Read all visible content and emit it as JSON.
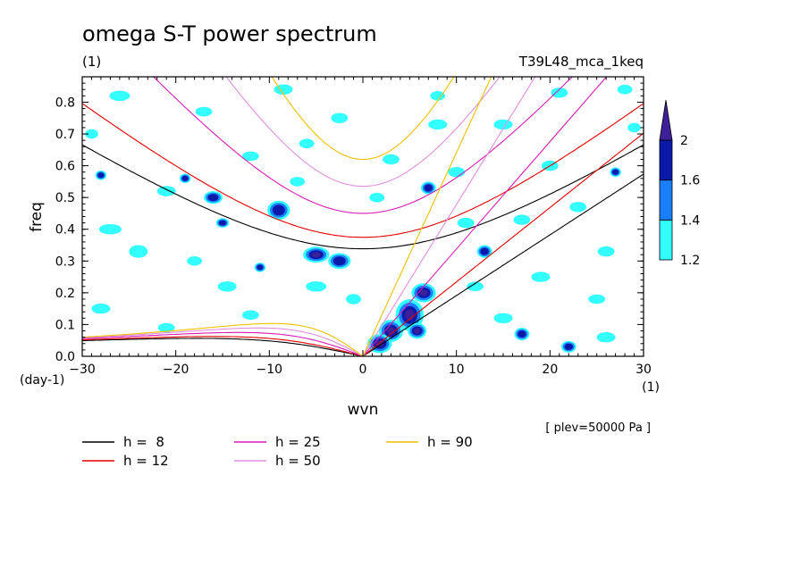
{
  "chart_data": {
    "type": "heatmap",
    "title": "omega S-T power spectrum",
    "subtitle_left": "(1)",
    "subtitle_right": "T39L48_mca_1keq",
    "xlabel": "wvn",
    "ylabel": "freq",
    "x_unit": "(1)",
    "y_unit": "(day-1)",
    "note": "[ plev=50000 Pa ]",
    "xlim": [
      -30,
      30
    ],
    "ylim": [
      0,
      0.88
    ],
    "xticks": [
      -30,
      -20,
      -10,
      0,
      10,
      20,
      30
    ],
    "yticks": [
      0.0,
      0.1,
      0.2,
      0.3,
      0.4,
      0.5,
      0.6,
      0.7,
      0.8
    ],
    "xtick_labels": [
      "−30",
      "−20",
      "−10",
      "0",
      "10",
      "20",
      "30"
    ],
    "ytick_labels": [
      "0.0",
      "0.1",
      "0.2",
      "0.3",
      "0.4",
      "0.5",
      "0.6",
      "0.7",
      "0.8"
    ],
    "colorbar": {
      "levels": [
        1.2,
        1.4,
        1.6,
        2
      ],
      "level_labels": [
        "1.2",
        "1.4",
        "1.6",
        "2"
      ],
      "colors": [
        "#33ffff",
        "#1a7fff",
        "#0b1aa8",
        "#3d1f99"
      ],
      "extend": "max"
    },
    "dispersion_curves": [
      {
        "label": "h =  8",
        "h": 8,
        "color": "#000000"
      },
      {
        "label": "h = 12",
        "h": 12,
        "color": "#e00000"
      },
      {
        "label": "h = 25",
        "h": 25,
        "color": "#d81ab5"
      },
      {
        "label": "h = 50",
        "h": 50,
        "color": "#e28ee0"
      },
      {
        "label": "h = 90",
        "h": 90,
        "color": "#f0c000"
      }
    ],
    "blobs": [
      {
        "x": 3,
        "y": 0.08,
        "rx": 1.3,
        "ry": 0.035,
        "level": 3
      },
      {
        "x": 5,
        "y": 0.13,
        "rx": 1.5,
        "ry": 0.05,
        "level": 3
      },
      {
        "x": 6.5,
        "y": 0.2,
        "rx": 1.3,
        "ry": 0.03,
        "level": 3
      },
      {
        "x": 1.8,
        "y": 0.04,
        "rx": 1.3,
        "ry": 0.03,
        "level": 3
      },
      {
        "x": 5.8,
        "y": 0.08,
        "rx": 1.0,
        "ry": 0.025,
        "level": 3
      },
      {
        "x": -5,
        "y": 0.32,
        "rx": 1.4,
        "ry": 0.025,
        "level": 3
      },
      {
        "x": -2.5,
        "y": 0.3,
        "rx": 1.2,
        "ry": 0.025,
        "level": 2
      },
      {
        "x": -9,
        "y": 0.46,
        "rx": 1.2,
        "ry": 0.03,
        "level": 2
      },
      {
        "x": -16,
        "y": 0.5,
        "rx": 1.0,
        "ry": 0.02,
        "level": 2
      },
      {
        "x": 7,
        "y": 0.53,
        "rx": 0.8,
        "ry": 0.02,
        "level": 2
      },
      {
        "x": 13,
        "y": 0.33,
        "rx": 0.8,
        "ry": 0.02,
        "level": 2
      },
      {
        "x": 17,
        "y": 0.07,
        "rx": 0.8,
        "ry": 0.02,
        "level": 2
      },
      {
        "x": 22,
        "y": 0.03,
        "rx": 0.8,
        "ry": 0.018,
        "level": 2
      },
      {
        "x": -28,
        "y": 0.57,
        "rx": 0.6,
        "ry": 0.015,
        "level": 2
      },
      {
        "x": -19,
        "y": 0.56,
        "rx": 0.6,
        "ry": 0.015,
        "level": 2
      },
      {
        "x": -15,
        "y": 0.42,
        "rx": 0.7,
        "ry": 0.015,
        "level": 2
      },
      {
        "x": 27,
        "y": 0.58,
        "rx": 0.6,
        "ry": 0.015,
        "level": 2
      },
      {
        "x": -11,
        "y": 0.28,
        "rx": 0.6,
        "ry": 0.015,
        "level": 2
      },
      {
        "x": -5,
        "y": 0.22,
        "rx": 1.1,
        "ry": 0.016,
        "level": 0
      },
      {
        "x": -14.5,
        "y": 0.22,
        "rx": 1.0,
        "ry": 0.016,
        "level": 0
      },
      {
        "x": -24,
        "y": 0.33,
        "rx": 1.0,
        "ry": 0.02,
        "level": 0
      },
      {
        "x": -27,
        "y": 0.4,
        "rx": 1.2,
        "ry": 0.016,
        "level": 0
      },
      {
        "x": -21,
        "y": 0.52,
        "rx": 1.0,
        "ry": 0.016,
        "level": 0
      },
      {
        "x": -12,
        "y": 0.63,
        "rx": 0.9,
        "ry": 0.015,
        "level": 0
      },
      {
        "x": -6,
        "y": 0.67,
        "rx": 0.8,
        "ry": 0.015,
        "level": 0
      },
      {
        "x": -2.5,
        "y": 0.75,
        "rx": 0.9,
        "ry": 0.016,
        "level": 0
      },
      {
        "x": -8.5,
        "y": 0.84,
        "rx": 1.0,
        "ry": 0.016,
        "level": 0
      },
      {
        "x": -26,
        "y": 0.82,
        "rx": 1.1,
        "ry": 0.016,
        "level": 0
      },
      {
        "x": -17,
        "y": 0.77,
        "rx": 0.9,
        "ry": 0.015,
        "level": 0
      },
      {
        "x": 8,
        "y": 0.73,
        "rx": 1.0,
        "ry": 0.016,
        "level": 0
      },
      {
        "x": 15,
        "y": 0.73,
        "rx": 1.0,
        "ry": 0.016,
        "level": 0
      },
      {
        "x": 21,
        "y": 0.83,
        "rx": 0.9,
        "ry": 0.016,
        "level": 0
      },
      {
        "x": 28,
        "y": 0.84,
        "rx": 0.8,
        "ry": 0.015,
        "level": 0
      },
      {
        "x": 26,
        "y": 0.33,
        "rx": 0.9,
        "ry": 0.016,
        "level": 0
      },
      {
        "x": 19,
        "y": 0.25,
        "rx": 1.0,
        "ry": 0.016,
        "level": 0
      },
      {
        "x": 25,
        "y": 0.18,
        "rx": 0.9,
        "ry": 0.015,
        "level": 0
      },
      {
        "x": 15,
        "y": 0.12,
        "rx": 1.0,
        "ry": 0.016,
        "level": 0
      },
      {
        "x": 26,
        "y": 0.06,
        "rx": 1.0,
        "ry": 0.016,
        "level": 0
      },
      {
        "x": 11,
        "y": 0.42,
        "rx": 0.9,
        "ry": 0.016,
        "level": 0
      },
      {
        "x": 17,
        "y": 0.43,
        "rx": 0.9,
        "ry": 0.016,
        "level": 0
      },
      {
        "x": 23,
        "y": 0.47,
        "rx": 0.9,
        "ry": 0.016,
        "level": 0
      },
      {
        "x": 10,
        "y": 0.58,
        "rx": 0.9,
        "ry": 0.016,
        "level": 0
      },
      {
        "x": 20,
        "y": 0.6,
        "rx": 0.9,
        "ry": 0.016,
        "level": 0
      },
      {
        "x": 3,
        "y": 0.62,
        "rx": 0.9,
        "ry": 0.016,
        "level": 0
      },
      {
        "x": 1.5,
        "y": 0.5,
        "rx": 0.8,
        "ry": 0.015,
        "level": 0
      },
      {
        "x": -28,
        "y": 0.15,
        "rx": 1.0,
        "ry": 0.016,
        "level": 0
      },
      {
        "x": -21,
        "y": 0.09,
        "rx": 0.9,
        "ry": 0.015,
        "level": 0
      },
      {
        "x": -12,
        "y": 0.13,
        "rx": 0.9,
        "ry": 0.015,
        "level": 0
      },
      {
        "x": -29,
        "y": 0.7,
        "rx": 0.7,
        "ry": 0.015,
        "level": 0
      },
      {
        "x": -1,
        "y": 0.18,
        "rx": 0.8,
        "ry": 0.016,
        "level": 0
      },
      {
        "x": 12,
        "y": 0.22,
        "rx": 0.9,
        "ry": 0.015,
        "level": 0
      },
      {
        "x": 29,
        "y": 0.72,
        "rx": 0.7,
        "ry": 0.015,
        "level": 0
      },
      {
        "x": -7,
        "y": 0.55,
        "rx": 0.8,
        "ry": 0.015,
        "level": 0
      },
      {
        "x": -18,
        "y": 0.3,
        "rx": 0.8,
        "ry": 0.015,
        "level": 0
      },
      {
        "x": 8,
        "y": 0.82,
        "rx": 0.8,
        "ry": 0.015,
        "level": 0
      }
    ]
  }
}
